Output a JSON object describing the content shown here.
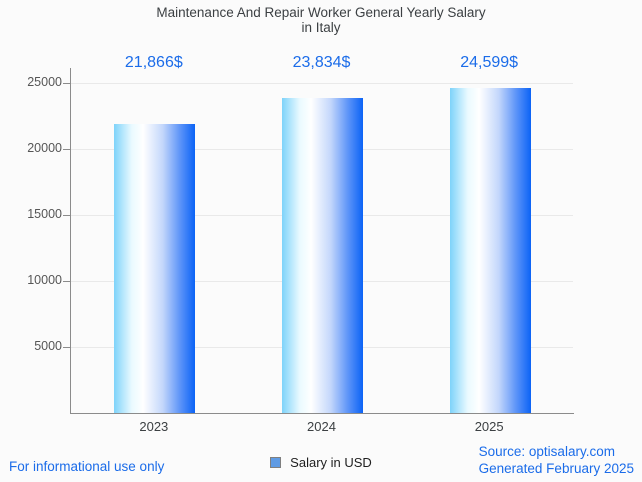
{
  "title": {
    "line1": "Maintenance And Repair Worker General Yearly Salary",
    "line2": "in Italy"
  },
  "legend": {
    "label": "Salary in USD",
    "swatch_color": "#5f9be4"
  },
  "footer": {
    "left_note": "For informational use only",
    "source_line1": "Source: optisalary.com",
    "source_line2": "Generated February 2025"
  },
  "colors": {
    "accent_blue": "#1b6ce9",
    "bar_gradient_left": "#7ed3fa",
    "bar_gradient_mid": "#ffffff",
    "bar_gradient_right": "#0b63f6",
    "axis": "#8b8b8b",
    "gridline": "#e9e9e9",
    "title_text": "#3c4043",
    "tick_text": "#565656",
    "background": "#fbfbfb"
  },
  "chart_data": {
    "type": "bar",
    "title": "Maintenance And Repair Worker General Yearly Salary in Italy",
    "categories": [
      "2023",
      "2024",
      "2025"
    ],
    "values": [
      21866,
      23834,
      24599
    ],
    "value_labels": [
      "21,866$",
      "23,834$",
      "24,599$"
    ],
    "series_name": "Salary in USD",
    "xlabel": "",
    "ylabel": "",
    "yticks": [
      5000,
      10000,
      15000,
      20000,
      25000
    ],
    "ytick_labels": [
      "5000",
      "10000",
      "15000",
      "20000",
      "25000"
    ],
    "ylim": [
      0,
      26136
    ],
    "grid": "horizontal",
    "legend_position": "bottom"
  }
}
